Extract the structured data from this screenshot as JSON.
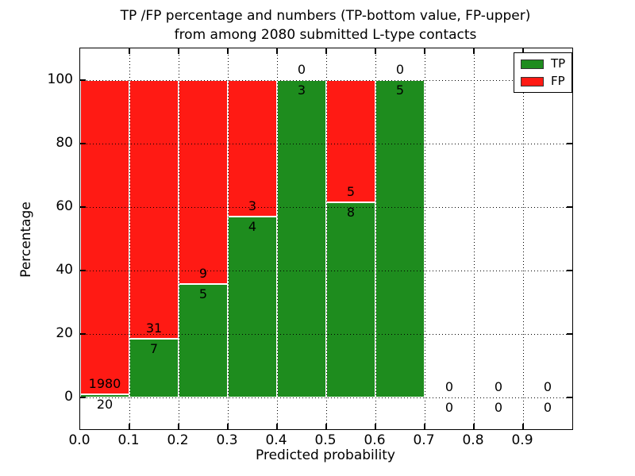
{
  "figure": {
    "title_line1": "TP /FP percentage and numbers (TP-bottom value, FP-upper)",
    "title_line2": "from among 2080 submitted L-type contacts"
  },
  "axes": {
    "xlabel": "Predicted probability",
    "ylabel": "Percentage",
    "x_tick_labels": [
      "0.0",
      "0.1",
      "0.2",
      "0.3",
      "0.4",
      "0.5",
      "0.6",
      "0.7",
      "0.8",
      "0.9"
    ],
    "y_tick_labels": [
      "0",
      "20",
      "40",
      "60",
      "80",
      "100"
    ],
    "y_tick_values": [
      0,
      20,
      40,
      60,
      80,
      100
    ]
  },
  "legend": {
    "items": [
      {
        "label": "TP",
        "color": "#1e8c1e"
      },
      {
        "label": "FP",
        "color": "#ff1a14"
      }
    ]
  },
  "colors": {
    "tp": "#1e8c1e",
    "fp": "#ff1a14",
    "bar_edge": "#ffffff",
    "grid": "#000000"
  },
  "chart_data": {
    "type": "bar",
    "stacked": true,
    "title": "TP /FP percentage and numbers (TP-bottom value, FP-upper) from among 2080 submitted L-type contacts",
    "xlabel": "Predicted probability",
    "ylabel": "Percentage",
    "xlim": [
      0.0,
      1.0
    ],
    "ylim": [
      -10,
      110
    ],
    "grid": true,
    "legend_position": "upper right",
    "total_contacts": 2080,
    "bin_width": 0.1,
    "categories": [
      "0.0-0.1",
      "0.1-0.2",
      "0.2-0.3",
      "0.3-0.4",
      "0.4-0.5",
      "0.5-0.6",
      "0.6-0.7",
      "0.7-0.8",
      "0.8-0.9",
      "0.9-1.0"
    ],
    "series": [
      {
        "name": "TP",
        "values": [
          20,
          7,
          5,
          4,
          3,
          8,
          5,
          0,
          0,
          0
        ]
      },
      {
        "name": "FP",
        "values": [
          1980,
          31,
          9,
          3,
          0,
          5,
          0,
          0,
          0,
          0
        ]
      }
    ],
    "bins": [
      {
        "x_start": 0.0,
        "x_end": 0.1,
        "tp": 20,
        "fp": 1980,
        "tp_pct": 1.0
      },
      {
        "x_start": 0.1,
        "x_end": 0.2,
        "tp": 7,
        "fp": 31,
        "tp_pct": 18.4
      },
      {
        "x_start": 0.2,
        "x_end": 0.3,
        "tp": 5,
        "fp": 9,
        "tp_pct": 35.7
      },
      {
        "x_start": 0.3,
        "x_end": 0.4,
        "tp": 4,
        "fp": 3,
        "tp_pct": 57.1
      },
      {
        "x_start": 0.4,
        "x_end": 0.5,
        "tp": 3,
        "fp": 0,
        "tp_pct": 100
      },
      {
        "x_start": 0.5,
        "x_end": 0.6,
        "tp": 8,
        "fp": 5,
        "tp_pct": 61.5
      },
      {
        "x_start": 0.6,
        "x_end": 0.7,
        "tp": 5,
        "fp": 0,
        "tp_pct": 100
      },
      {
        "x_start": 0.7,
        "x_end": 0.8,
        "tp": 0,
        "fp": 0,
        "tp_pct": null
      },
      {
        "x_start": 0.8,
        "x_end": 0.9,
        "tp": 0,
        "fp": 0,
        "tp_pct": null
      },
      {
        "x_start": 0.9,
        "x_end": 1.0,
        "tp": 0,
        "fp": 0,
        "tp_pct": null
      }
    ]
  }
}
